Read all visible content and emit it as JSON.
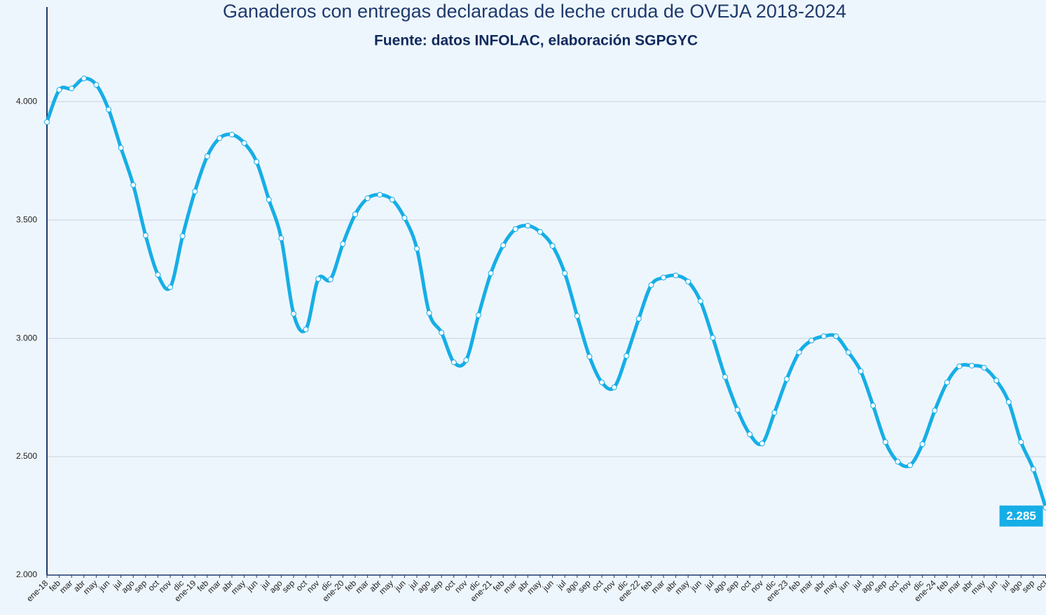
{
  "chart_data": {
    "type": "line",
    "title": "Ganaderos con entregas declaradas de leche cruda de OVEJA 2018-2024",
    "subtitle": "Fuente: datos INFOLAC, elaboración SGPGYC",
    "categories": [
      "ene-18",
      "feb",
      "mar",
      "abr",
      "may",
      "jun",
      "jul",
      "ago",
      "sep",
      "oct",
      "nov",
      "dic",
      "ene-19",
      "feb",
      "mar",
      "abr",
      "may",
      "jun",
      "jul",
      "ago",
      "sep",
      "oct",
      "nov",
      "dic",
      "ene-20",
      "feb",
      "mar",
      "abr",
      "may",
      "jun",
      "jul",
      "ago",
      "sep",
      "oct",
      "nov",
      "dic",
      "ene-21",
      "feb",
      "mar",
      "abr",
      "may",
      "jun",
      "jul",
      "ago",
      "sep",
      "oct",
      "nov",
      "dic",
      "ene-22",
      "feb",
      "mar",
      "abr",
      "may",
      "jun",
      "jul",
      "ago",
      "sep",
      "oct",
      "nov",
      "dic",
      "ene-23",
      "feb",
      "mar",
      "abr",
      "may",
      "jun",
      "jul",
      "ago",
      "sep",
      "oct",
      "nov",
      "dic",
      "ene-24",
      "feb",
      "mar",
      "abr",
      "may",
      "jun",
      "jul",
      "ago",
      "sep",
      "oct"
    ],
    "series": [
      {
        "name": "Ganaderos",
        "color": "#16aee6",
        "values": [
          3914,
          4050,
          4056,
          4098,
          4071,
          3967,
          3805,
          3648,
          3435,
          3269,
          3216,
          3432,
          3621,
          3769,
          3846,
          3861,
          3825,
          3746,
          3586,
          3423,
          3104,
          3038,
          3251,
          3249,
          3399,
          3524,
          3592,
          3607,
          3586,
          3509,
          3379,
          3107,
          3024,
          2899,
          2908,
          3098,
          3275,
          3393,
          3462,
          3476,
          3450,
          3391,
          3275,
          3095,
          2923,
          2814,
          2793,
          2926,
          3083,
          3225,
          3257,
          3266,
          3240,
          3157,
          3003,
          2837,
          2698,
          2595,
          2556,
          2686,
          2828,
          2941,
          2991,
          3009,
          3009,
          2941,
          2861,
          2716,
          2562,
          2479,
          2464,
          2553,
          2695,
          2814,
          2882,
          2885,
          2876,
          2822,
          2731,
          2562,
          2447,
          2285
        ],
        "value_labels": {
          "81": "2.285"
        }
      }
    ],
    "ylim": [
      2000,
      4400
    ],
    "yticks": [
      {
        "value": 2000,
        "label": "2.000"
      },
      {
        "value": 2500,
        "label": "2.500"
      },
      {
        "value": 3000,
        "label": "3.000"
      },
      {
        "value": 3500,
        "label": "3.500"
      },
      {
        "value": 4000,
        "label": "4.000"
      }
    ],
    "grid": true
  }
}
